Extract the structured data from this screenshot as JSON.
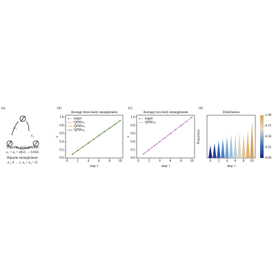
{
  "panel_a": {
    "label": "(a)",
    "nodes": [
      "e₁",
      "e₂",
      "e₃"
    ],
    "lines": [
      "Tripartite entanglement:",
      "e₁ = e₂ = e₃: 0 → 0.918.",
      "Biparite entanglement:",
      "e₁: 0 → 1, e₂ = e₃ = 0."
    ]
  },
  "chart_data": [
    {
      "type": "line",
      "label": "(b)",
      "title": "Average three-body entanglement",
      "xlabel": "step: l",
      "ylabel": "e",
      "x": [
        1,
        2,
        3,
        4,
        5,
        6,
        7,
        8,
        9,
        10
      ],
      "series": [
        {
          "name": "target",
          "color": "#2a3fbf",
          "dash": "3,1.5,1,1.5",
          "values": [
            0.092,
            0.184,
            0.275,
            0.367,
            0.459,
            0.551,
            0.643,
            0.734,
            0.826,
            0.918
          ]
        },
        {
          "name": "QFM:e₁",
          "color": "#e8485a",
          "dash": "1.5,1.5",
          "values": [
            0.092,
            0.184,
            0.275,
            0.367,
            0.459,
            0.551,
            0.643,
            0.734,
            0.826,
            0.918
          ]
        },
        {
          "name": "QFM:e₂",
          "color": "#f39a1c",
          "dash": "",
          "values": [
            0.092,
            0.184,
            0.275,
            0.367,
            0.459,
            0.551,
            0.643,
            0.734,
            0.826,
            0.918
          ]
        },
        {
          "name": "QFM:e₃",
          "color": "#3c8f3c",
          "dash": "",
          "values": [
            0.092,
            0.184,
            0.275,
            0.367,
            0.459,
            0.551,
            0.643,
            0.734,
            0.826,
            0.918
          ]
        }
      ],
      "xlim": [
        -0.3,
        10.5
      ],
      "ylim": [
        0,
        1.05
      ],
      "xticks": [
        0,
        2,
        4,
        6,
        8,
        10
      ],
      "yticks": [
        {
          "value": 0,
          "label": "0.0"
        },
        0.2,
        0.4,
        0.6,
        0.8,
        {
          "value": 1,
          "label": "1.0"
        }
      ],
      "legend": "upper left"
    },
    {
      "type": "line",
      "label": "(c)",
      "title": "Average two-body entanglement",
      "xlabel": "step: l",
      "ylabel": "e",
      "x": [
        1,
        2,
        3,
        4,
        5,
        6,
        7,
        8,
        9,
        10
      ],
      "series": [
        {
          "name": "target",
          "color": "#2a3fbf",
          "dash": "3,1.5,1,1.5",
          "values": [
            0.1,
            0.2,
            0.3,
            0.4,
            0.5,
            0.6,
            0.7,
            0.8,
            0.9,
            1.0
          ]
        },
        {
          "name": "QFM:e₁",
          "color": "#d43fb4",
          "dash": "1.5,1.5",
          "values": [
            0.1,
            0.2,
            0.3,
            0.4,
            0.5,
            0.6,
            0.7,
            0.8,
            0.9,
            1.0
          ]
        }
      ],
      "xlim": [
        -0.3,
        10.5
      ],
      "ylim": [
        0,
        1.05
      ],
      "xticks": [
        0,
        2,
        4,
        6,
        8,
        10
      ],
      "yticks": [
        {
          "value": 0,
          "label": "0.0"
        },
        0.2,
        0.4,
        0.6,
        0.8,
        {
          "value": 1,
          "label": "1.0"
        }
      ],
      "legend": "upper left"
    },
    {
      "type": "distribution",
      "label": "(d)",
      "title": "Distribution",
      "xlabel": "step: l",
      "ylabel": "Proportion",
      "x": [
        0,
        1,
        2,
        3,
        4,
        5,
        6,
        7,
        8,
        9,
        10
      ],
      "values": [
        0.3,
        0.35,
        0.4,
        0.45,
        0.5,
        0.55,
        0.55,
        0.6,
        0.55,
        0.65,
        0.85
      ],
      "colors": [
        "#1a237e",
        "#23409a",
        "#2e5cb0",
        "#4a7fc4",
        "#6aa0d4",
        "#97bede",
        "#bcd0dc",
        "#d8d4c0",
        "#e2c597",
        "#dcb274",
        "#d6a45e"
      ],
      "xlim": [
        -0.8,
        10.8
      ],
      "ylim": [
        0,
        1
      ],
      "xticks": [
        0,
        2,
        4,
        6,
        8,
        10
      ],
      "colorbar": {
        "label": "e",
        "lim": [
          0,
          1
        ],
        "cmap": [
          "#1a237e",
          "#4a7fc4",
          "#e4dcc8",
          "#d6a45e"
        ],
        "ticks": [
          {
            "value": 0,
            "label": "0.00"
          },
          {
            "value": 0.25,
            "label": "0.25"
          },
          {
            "value": 0.5,
            "label": "0.50"
          },
          {
            "value": 0.75,
            "label": "0.75"
          },
          {
            "value": 1,
            "label": "1.00"
          }
        ]
      }
    }
  ]
}
